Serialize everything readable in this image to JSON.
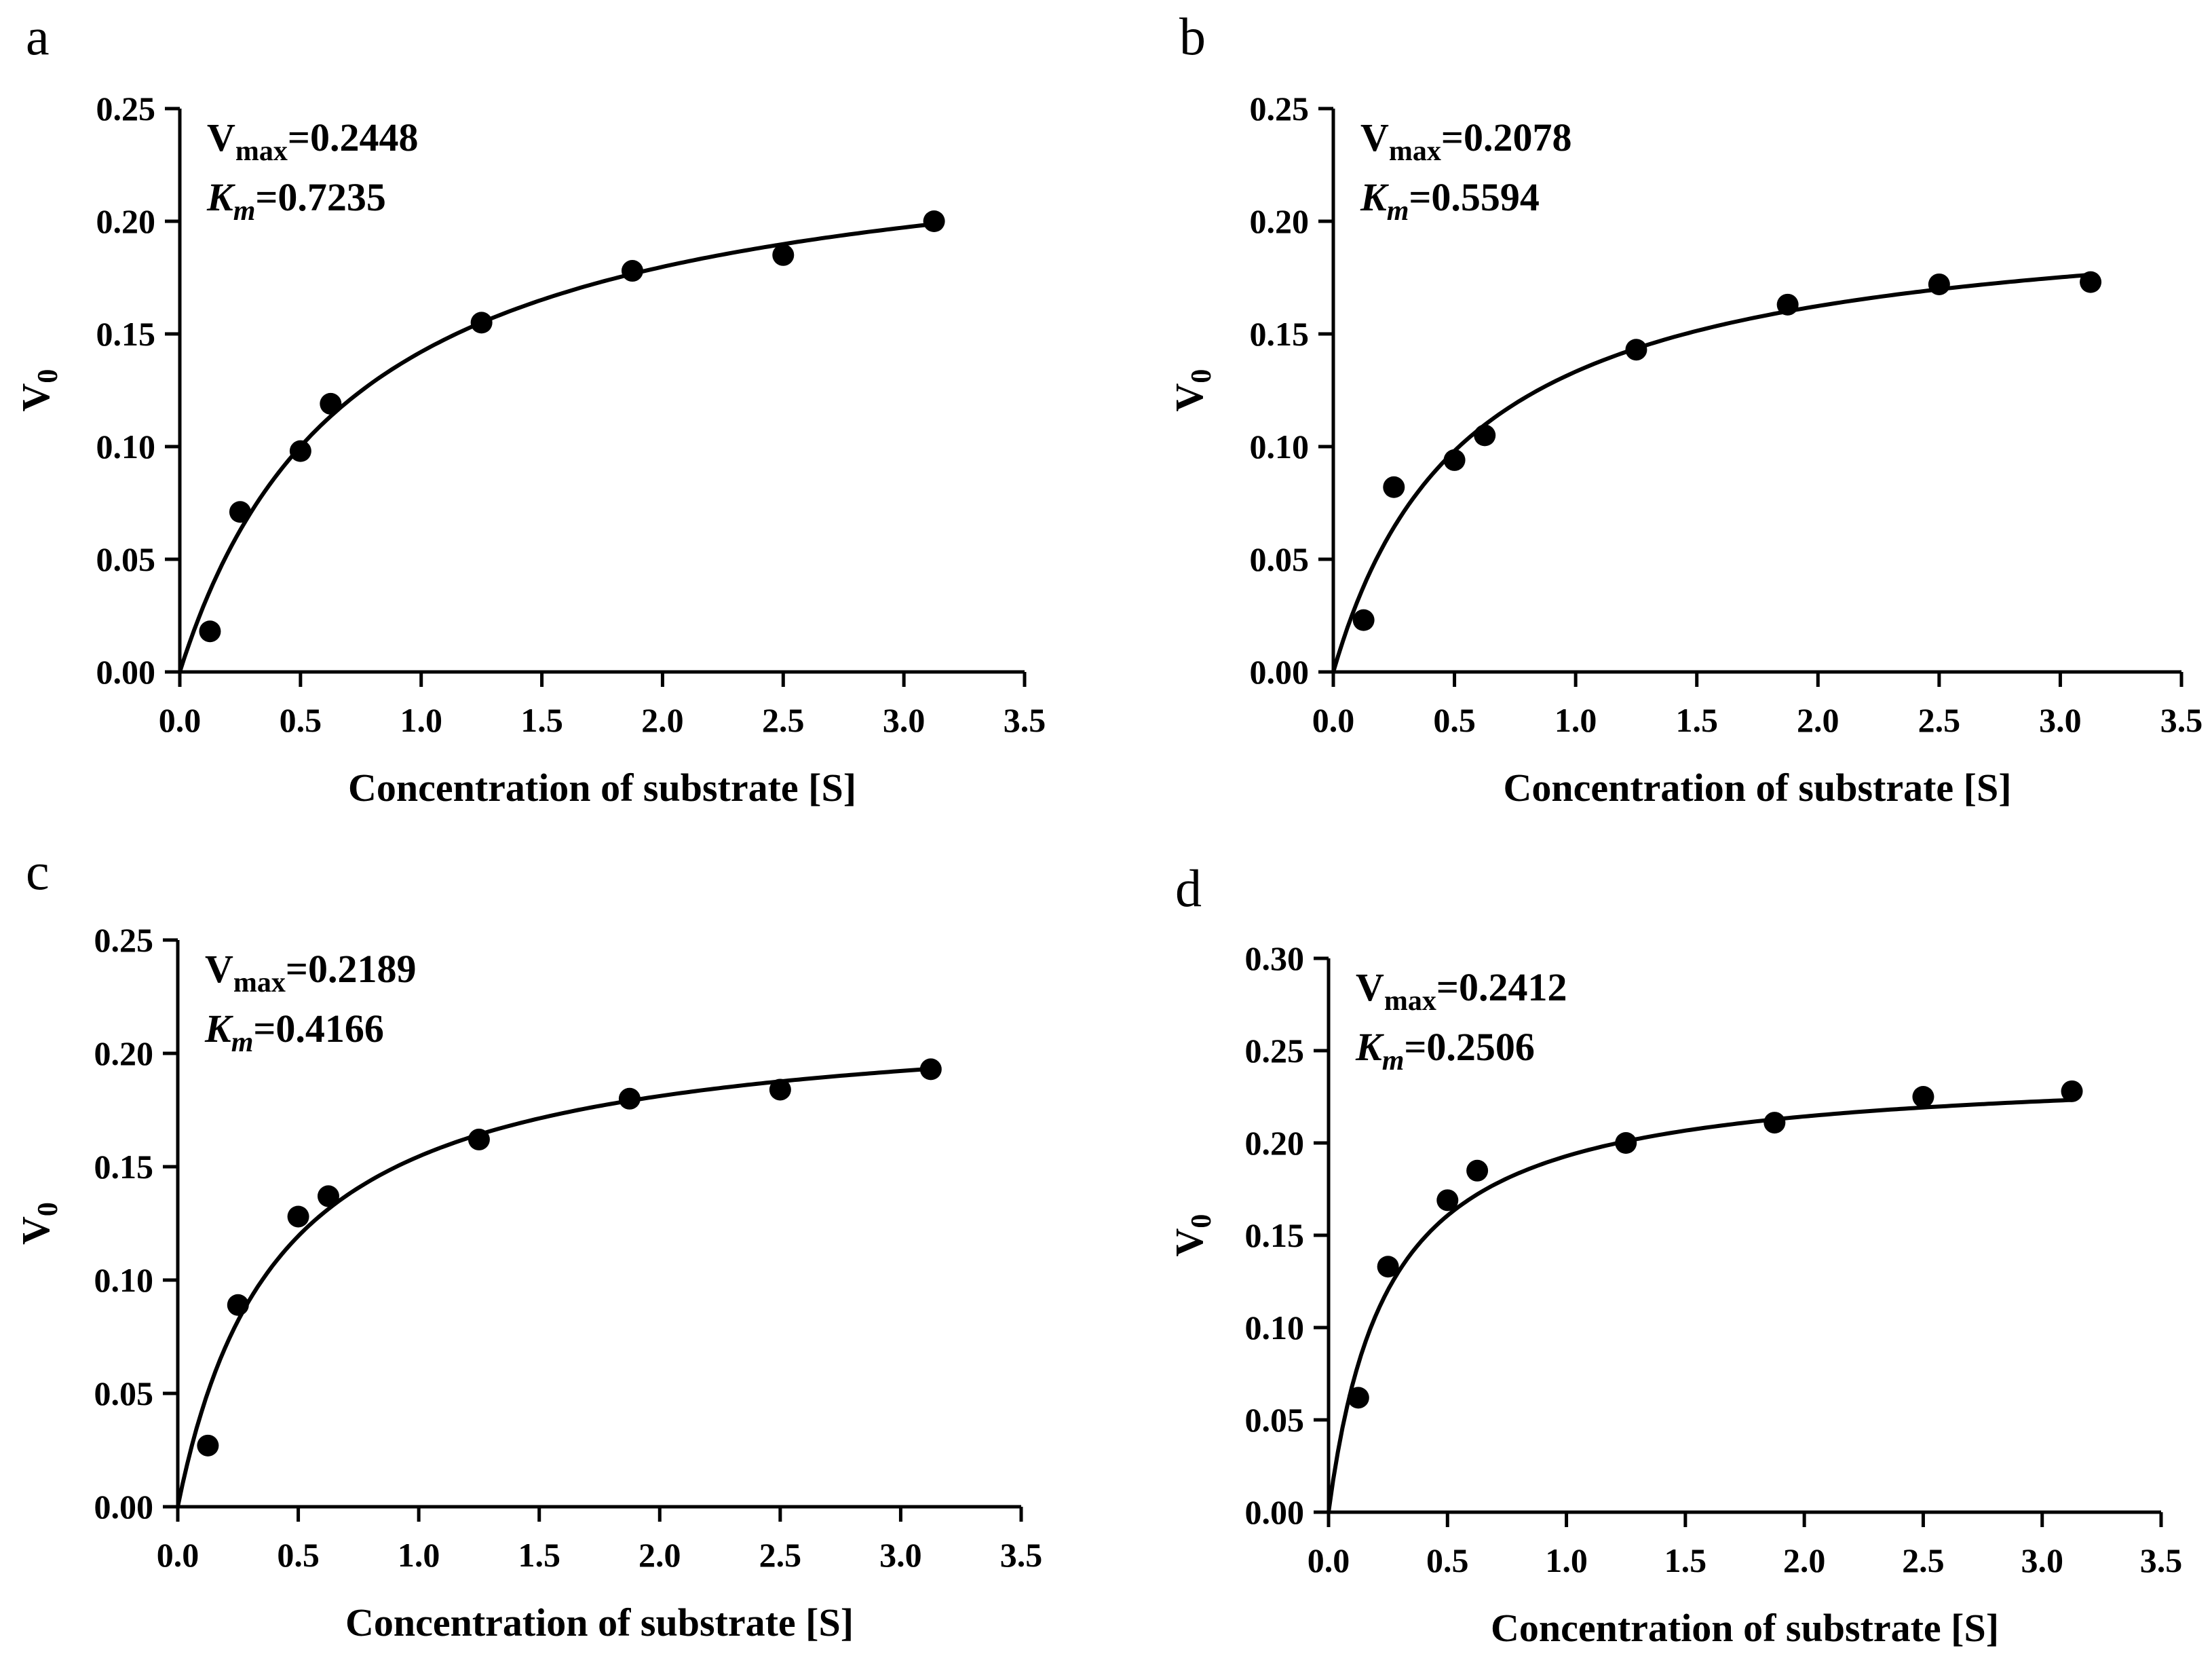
{
  "chart_data": [
    {
      "panel_label": "a",
      "type": "scatter",
      "fit": "michaelis-menten",
      "vmax_symbol": "V",
      "vmax_subscript": "max",
      "vmax_value": "=0.2448",
      "km_symbol": "K",
      "km_subscript": "m",
      "km_value": "=0.7235",
      "vmax": 0.2448,
      "km": 0.7235,
      "x": [
        0.125,
        0.25,
        0.5,
        0.625,
        1.25,
        1.875,
        2.5,
        3.125
      ],
      "y": [
        0.018,
        0.071,
        0.098,
        0.119,
        0.155,
        0.178,
        0.185,
        0.2
      ],
      "xlabel": "Concentration of substrate [S]",
      "ylabel_main": "V",
      "ylabel_sub": "0",
      "xlim": [
        0,
        3.5
      ],
      "ylim": [
        0,
        0.25
      ],
      "xticks": [
        "0.0",
        "0.5",
        "1.0",
        "1.5",
        "2.0",
        "2.5",
        "3.0",
        "3.5"
      ],
      "yticks": [
        "0.00",
        "0.05",
        "0.10",
        "0.15",
        "0.20",
        "0.25"
      ]
    },
    {
      "panel_label": "b",
      "type": "scatter",
      "fit": "michaelis-menten",
      "vmax_symbol": "V",
      "vmax_subscript": "max",
      "vmax_value": "=0.2078",
      "km_symbol": "K",
      "km_subscript": "m",
      "km_value": "=0.5594",
      "vmax": 0.2078,
      "km": 0.5594,
      "x": [
        0.125,
        0.25,
        0.5,
        0.625,
        1.25,
        1.875,
        2.5,
        3.125
      ],
      "y": [
        0.023,
        0.082,
        0.094,
        0.105,
        0.143,
        0.163,
        0.172,
        0.173
      ],
      "xlabel": "Concentration of substrate [S]",
      "ylabel_main": "V",
      "ylabel_sub": "0",
      "xlim": [
        0,
        3.5
      ],
      "ylim": [
        0,
        0.25
      ],
      "xticks": [
        "0.0",
        "0.5",
        "1.0",
        "1.5",
        "2.0",
        "2.5",
        "3.0",
        "3.5"
      ],
      "yticks": [
        "0.00",
        "0.05",
        "0.10",
        "0.15",
        "0.20",
        "0.25"
      ]
    },
    {
      "panel_label": "c",
      "type": "scatter",
      "fit": "michaelis-menten",
      "vmax_symbol": "V",
      "vmax_subscript": "max",
      "vmax_value": "=0.2189",
      "km_symbol": "K",
      "km_subscript": "m",
      "km_value": "=0.4166",
      "vmax": 0.2189,
      "km": 0.4166,
      "x": [
        0.125,
        0.25,
        0.5,
        0.625,
        1.25,
        1.875,
        2.5,
        3.125
      ],
      "y": [
        0.027,
        0.089,
        0.128,
        0.137,
        0.162,
        0.18,
        0.184,
        0.193
      ],
      "xlabel": "Concentration of substrate [S]",
      "ylabel_main": "V",
      "ylabel_sub": "0",
      "xlim": [
        0,
        3.5
      ],
      "ylim": [
        0,
        0.25
      ],
      "xticks": [
        "0.0",
        "0.5",
        "1.0",
        "1.5",
        "2.0",
        "2.5",
        "3.0",
        "3.5"
      ],
      "yticks": [
        "0.00",
        "0.05",
        "0.10",
        "0.15",
        "0.20",
        "0.25"
      ]
    },
    {
      "panel_label": "d",
      "type": "scatter",
      "fit": "michaelis-menten",
      "vmax_symbol": "V",
      "vmax_subscript": "max",
      "vmax_value": "=0.2412",
      "km_symbol": "K",
      "km_subscript": "m",
      "km_value": "=0.2506",
      "vmax": 0.2412,
      "km": 0.2506,
      "x": [
        0.125,
        0.25,
        0.5,
        0.625,
        1.25,
        1.875,
        2.5,
        3.125
      ],
      "y": [
        0.062,
        0.133,
        0.169,
        0.185,
        0.2,
        0.211,
        0.225,
        0.228
      ],
      "xlabel": "Concentration of substrate [S]",
      "ylabel_main": "V",
      "ylabel_sub": "0",
      "xlim": [
        0,
        3.5
      ],
      "ylim": [
        0,
        0.3
      ],
      "xticks": [
        "0.0",
        "0.5",
        "1.0",
        "1.5",
        "2.0",
        "2.5",
        "3.0",
        "3.5"
      ],
      "yticks": [
        "0.00",
        "0.05",
        "0.10",
        "0.15",
        "0.20",
        "0.25",
        "0.30"
      ]
    }
  ]
}
